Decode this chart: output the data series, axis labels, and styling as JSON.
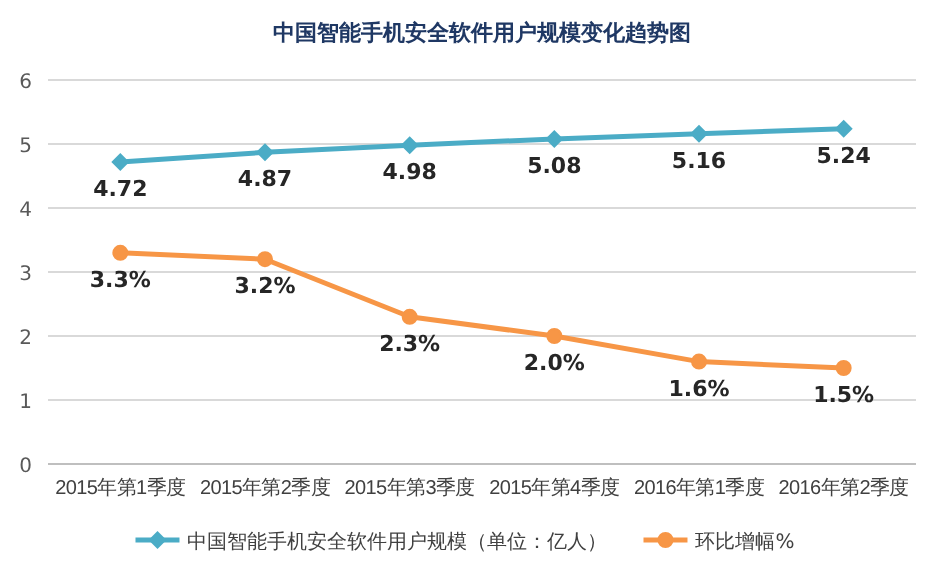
{
  "chart_data": {
    "type": "line",
    "title": "中国智能手机安全软件用户规模变化趋势图",
    "categories": [
      "2015年第1季度",
      "2015年第2季度",
      "2015年第3季度",
      "2015年第4季度",
      "2016年第1季度",
      "2016年第2季度"
    ],
    "series": [
      {
        "name": "中国智能手机安全软件用户规模（单位：亿人）",
        "color": "#4bacc6",
        "marker": "diamond",
        "values": [
          4.72,
          4.87,
          4.98,
          5.08,
          5.16,
          5.24
        ],
        "value_labels": [
          "4.72",
          "4.87",
          "4.98",
          "5.08",
          "5.16",
          "5.24"
        ]
      },
      {
        "name": "环比增幅%",
        "color": "#f79646",
        "marker": "circle",
        "values": [
          3.3,
          3.2,
          2.3,
          2.0,
          1.6,
          1.5
        ],
        "value_labels": [
          "3.3%",
          "3.2%",
          "2.3%",
          "2.0%",
          "1.6%",
          "1.5%"
        ]
      }
    ],
    "ylim": [
      0,
      6
    ],
    "yticks": [
      0,
      1,
      2,
      3,
      4,
      5,
      6
    ],
    "grid": "y",
    "legend": "bottom",
    "line_style": "solid"
  }
}
